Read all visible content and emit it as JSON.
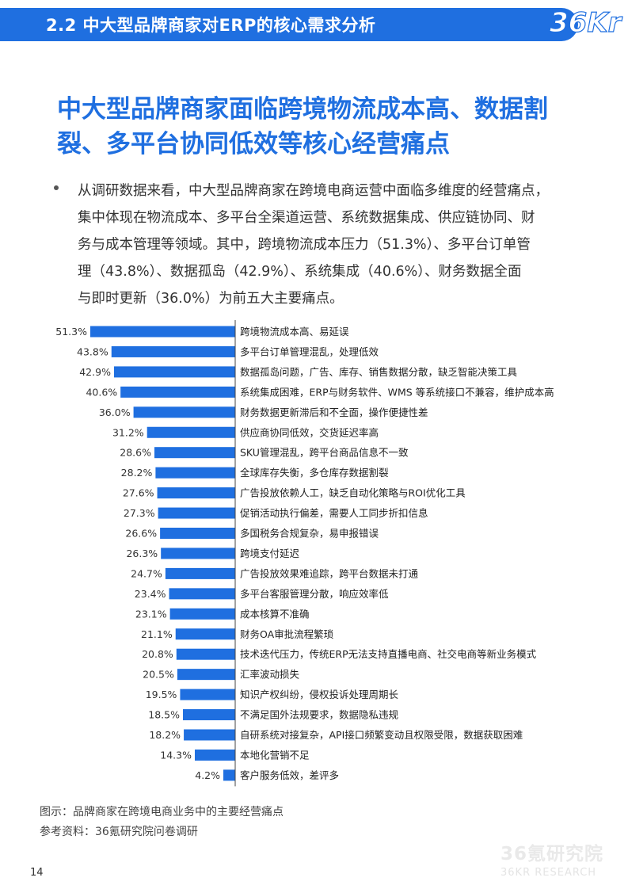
{
  "header": {
    "section_title": "2.2 中大型品牌商家对ERP的核心需求分析",
    "logo_text": "36Kr"
  },
  "main_title": {
    "line1": "中大型品牌商家面临跨境物流成本高、数据割",
    "line2": "裂、多平台协同低效等核心经营痛点"
  },
  "body": {
    "lines": [
      "从调研数据来看，中大型品牌商家在跨境电商运营中面临多维度的经营痛点，",
      "集中体现在物流成本、多平台全渠道运营、系统数据集成、供应链协同、财",
      "务与成本管理等领域。其中，跨境物流成本压力（51.3%）、多平台订单管",
      "理（43.8%）、数据孤岛（42.9%）、系统集成（40.6%）、财务数据全面",
      "与即时更新（36.0%）为前五大主要痛点。"
    ]
  },
  "chart_data": {
    "type": "bar",
    "orientation": "horizontal",
    "bar_direction": "right-to-left",
    "color": "#1f6fe0",
    "categories": [
      "跨境物流成本高、易延误",
      "多平台订单管理混乱，处理低效",
      "数据孤岛问题，广告、库存、销售数据分散，缺乏智能决策工具",
      "系统集成困难，ERP与财务软件、WMS 等系统接口不兼容，维护成本高",
      "财务数据更新滞后和不全面，操作便捷性差",
      "供应商协同低效，交货延迟率高",
      "SKU管理混乱，跨平台商品信息不一致",
      "全球库存失衡，多仓库存数据割裂",
      "广告投放依赖人工，缺乏自动化策略与ROI优化工具",
      "促销活动执行偏差，需要人工同步折扣信息",
      "多国税务合规复杂，易申报错误",
      "跨境支付延迟",
      "广告投放效果难追踪，跨平台数据未打通",
      "多平台客服管理分散，响应效率低",
      "成本核算不准确",
      "财务OA审批流程繁琐",
      "技术迭代压力，传统ERP无法支持直播电商、社交电商等新业务模式",
      "汇率波动损失",
      "知识产权纠纷，侵权投诉处理周期长",
      "不满足国外法规要求，数据隐私违规",
      "自研系统对接复杂，API接口频繁变动且权限受限，数据获取困难",
      "本地化营销不足",
      "客户服务低效，差评多"
    ],
    "values": [
      51.3,
      43.8,
      42.9,
      40.6,
      36.0,
      31.2,
      28.6,
      28.2,
      27.6,
      27.3,
      26.6,
      26.3,
      24.7,
      23.4,
      23.1,
      21.1,
      20.8,
      20.5,
      19.5,
      18.5,
      18.2,
      14.3,
      4.2
    ],
    "value_labels": [
      "51.3%",
      "43.8%",
      "42.9%",
      "40.6%",
      "36.0%",
      "31.2%",
      "28.6%",
      "28.2%",
      "27.6%",
      "27.3%",
      "26.6%",
      "26.3%",
      "24.7%",
      "23.4%",
      "23.1%",
      "21.1%",
      "20.8%",
      "20.5%",
      "19.5%",
      "18.5%",
      "18.2%",
      "14.3%",
      "4.2%"
    ],
    "xlim": [
      0,
      51.3
    ]
  },
  "captions": {
    "figure": "图示：品牌商家在跨境电商业务中的主要经营痛点",
    "source": "参考资料：36氪研究院问卷调研"
  },
  "footer": {
    "page_number": "14",
    "watermark_cn": "36氪研究院",
    "watermark_en": "36KR RESEARCH"
  }
}
